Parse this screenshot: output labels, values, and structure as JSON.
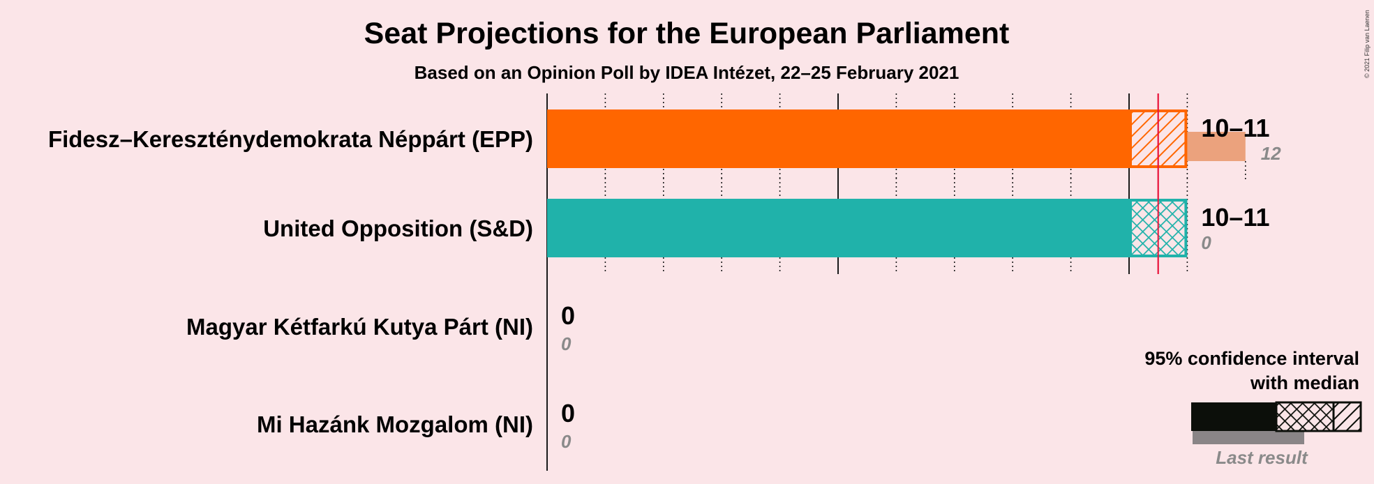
{
  "title": "Seat Projections for the European Parliament",
  "subtitle": "Based on an Opinion Poll by IDEA Intézet, 22–25 February 2021",
  "copyright": "© 2021 Filip van Laenen",
  "chart_data": {
    "type": "bar",
    "orientation": "horizontal",
    "majority_seats": 10.5,
    "parties": [
      {
        "name": "Fidesz–Kereszténydemokrata Néppárt (EPP)",
        "low": 10,
        "median": 10.5,
        "high": 11,
        "range_label": "10–11",
        "last_result": 12,
        "last_result_label": "12",
        "color": "#FF6600",
        "last_color": "#EBA27D",
        "pattern": "diagonal"
      },
      {
        "name": "United Opposition (S&D)",
        "low": 10,
        "median": 10.5,
        "high": 11,
        "range_label": "10–11",
        "last_result": 0,
        "last_result_label": "0",
        "color": "#20B2AA",
        "last_color": "#8fd3cf",
        "pattern": "crosshatch"
      },
      {
        "name": "Magyar Kétfarkú Kutya Párt (NI)",
        "low": 0,
        "median": 0,
        "high": 0,
        "range_label": "0",
        "last_result": 0,
        "last_result_label": "0",
        "color": "#888888",
        "last_color": "#aaaaaa",
        "pattern": "diagonal"
      },
      {
        "name": "Mi Hazánk Mozgalom (NI)",
        "low": 0,
        "median": 0,
        "high": 0,
        "range_label": "0",
        "last_result": 0,
        "last_result_label": "0",
        "color": "#888888",
        "last_color": "#aaaaaa",
        "pattern": "diagonal"
      }
    ],
    "xlim": [
      0,
      12
    ],
    "grid": true
  },
  "legend": {
    "line1": "95% confidence interval",
    "line2": "with median",
    "last_result": "Last result"
  }
}
